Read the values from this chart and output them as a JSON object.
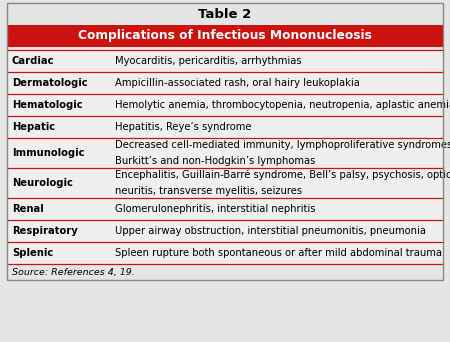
{
  "title": "Table 2",
  "header": "Complications of Infectious Mononucleosis",
  "header_bg": "#cc1111",
  "header_text_color": "#ffffff",
  "table_bg": "#e5e5e5",
  "row_bg": "#efefef",
  "row_separator_color": "#cc1111",
  "border_color": "#888888",
  "source": "Source: References 4, 19.",
  "rows": [
    {
      "category": "Cardiac",
      "description": "Myocarditis, pericarditis, arrhythmias",
      "lines": 1
    },
    {
      "category": "Dermatologic",
      "description": "Ampicillin-associated rash, oral hairy leukoplakia",
      "lines": 1
    },
    {
      "category": "Hematologic",
      "description": "Hemolytic anemia, thrombocytopenia, neutropenia, aplastic anemia",
      "lines": 1
    },
    {
      "category": "Hepatic",
      "description": "Hepatitis, Reye’s syndrome",
      "lines": 1
    },
    {
      "category": "Immunologic",
      "desc_line1": "Decreased cell-mediated immunity, lymphoproliferative syndromes,",
      "desc_line2": "Burkitt’s and non-Hodgkin’s lymphomas",
      "lines": 2
    },
    {
      "category": "Neurologic",
      "desc_line1": "Encephalitis, Guillain-Barré syndrome, Bell’s palsy, psychosis, optic",
      "desc_line2": "neuritis, transverse myelitis, seizures",
      "lines": 2
    },
    {
      "category": "Renal",
      "description": "Glomerulonephritis, interstitial nephritis",
      "lines": 1
    },
    {
      "category": "Respiratory",
      "description": "Upper airway obstruction, interstitial pneumonitis, pneumonia",
      "lines": 1
    },
    {
      "category": "Splenic",
      "description": "Spleen rupture both spontaneous or after mild abdominal trauma",
      "lines": 1
    }
  ],
  "cat_fontsize": 7.2,
  "desc_fontsize": 7.2,
  "title_fontsize": 9.5,
  "header_fontsize": 8.8,
  "source_fontsize": 6.8
}
